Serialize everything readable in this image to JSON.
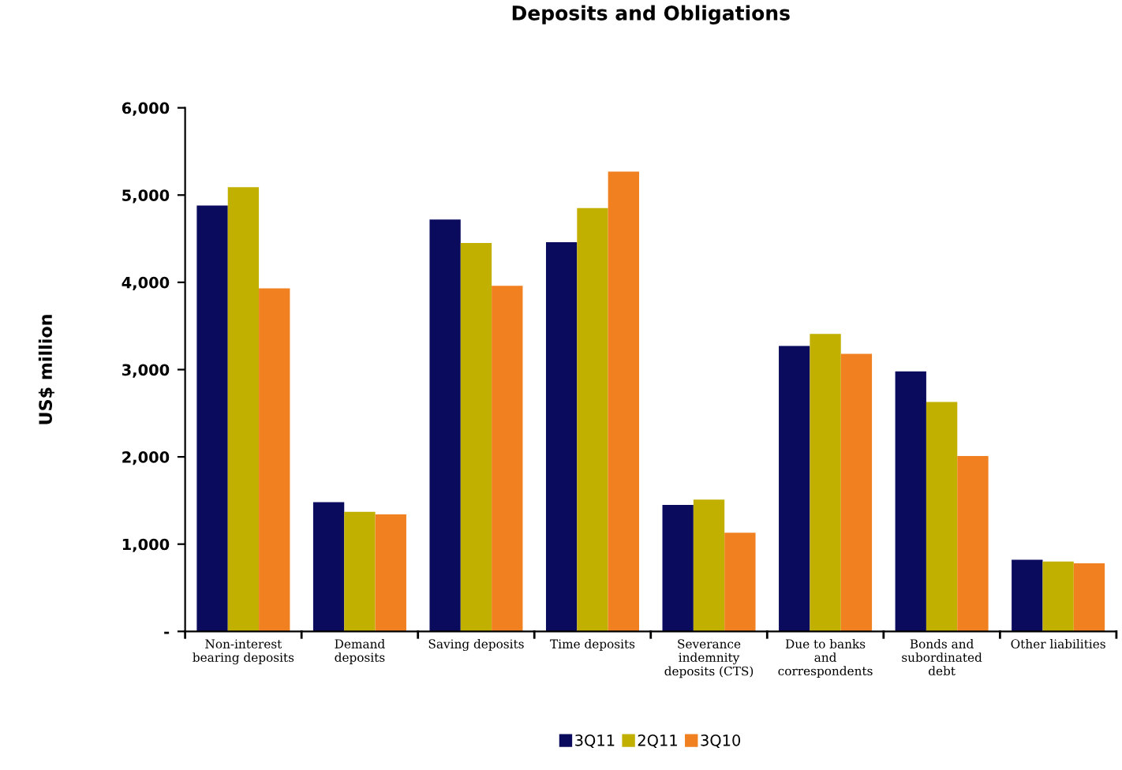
{
  "chart_data": {
    "type": "bar",
    "title": "Deposits and Obligations",
    "ylabel": "US$ million",
    "categories": [
      "Non-interest\nbearing deposits",
      "Demand\ndeposits",
      "Saving deposits",
      "Time deposits",
      "Severance\nindemnity\ndeposits (CTS)",
      "Due to banks\nand\ncorrespondents",
      "Bonds and\nsubordinated\ndebt",
      "Other liabilities"
    ],
    "series": [
      {
        "name": "3Q11",
        "color": "#0b0b5e",
        "values": [
          4880,
          1480,
          4720,
          4460,
          1450,
          3270,
          2980,
          820
        ]
      },
      {
        "name": "2Q11",
        "color": "#c2b000",
        "values": [
          5090,
          1370,
          4450,
          4850,
          1510,
          3410,
          2630,
          800
        ]
      },
      {
        "name": "3Q10",
        "color": "#f08020",
        "values": [
          3930,
          1340,
          3960,
          5270,
          1130,
          3180,
          2010,
          780
        ]
      }
    ],
    "ylim": [
      0,
      6000
    ],
    "yticks": [
      {
        "value": 0,
        "label": "-"
      },
      {
        "value": 1000,
        "label": "1,000"
      },
      {
        "value": 2000,
        "label": "2,000"
      },
      {
        "value": 3000,
        "label": "3,000"
      },
      {
        "value": 4000,
        "label": "4,000"
      },
      {
        "value": 5000,
        "label": "5,000"
      },
      {
        "value": 6000,
        "label": "6,000"
      }
    ],
    "grid": false,
    "legend": "bottom"
  }
}
